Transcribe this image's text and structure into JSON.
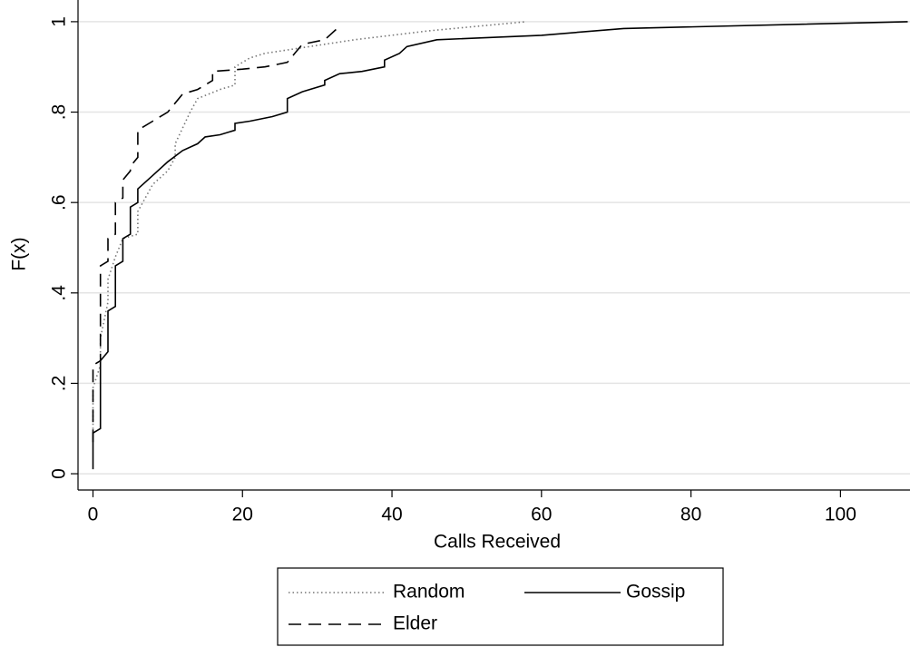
{
  "chart_data": {
    "type": "line",
    "x_label": "Calls Received",
    "y_label": "F(x)",
    "xlim": [
      -2,
      109.3
    ],
    "ylim": [
      -0.036,
      1.048
    ],
    "xticks": [
      0,
      20,
      40,
      60,
      80,
      100
    ],
    "yticks": [
      0,
      {
        "value": 0.2,
        "label": ".2"
      },
      {
        "value": 0.4,
        "label": ".4"
      },
      {
        "value": 0.6,
        "label": ".6"
      },
      {
        "value": 0.8,
        "label": ".8"
      },
      1
    ],
    "grid": true,
    "legend": "bottom",
    "series": [
      {
        "name": "Random",
        "color": "#777777",
        "dash": "dotted",
        "x": [
          0,
          0,
          1,
          1,
          2,
          2,
          3,
          4,
          6,
          6,
          8,
          10,
          11,
          11,
          13,
          14,
          17,
          19,
          19,
          21,
          23,
          27,
          35,
          45,
          58
        ],
        "values": [
          0.09,
          0.19,
          0.24,
          0.3,
          0.38,
          0.43,
          0.48,
          0.52,
          0.53,
          0.58,
          0.64,
          0.67,
          0.7,
          0.73,
          0.8,
          0.83,
          0.85,
          0.86,
          0.9,
          0.92,
          0.93,
          0.94,
          0.96,
          0.98,
          1
        ]
      },
      {
        "name": "Gossip",
        "color": "#000000",
        "dash": "solid",
        "x": [
          0,
          0,
          1,
          1,
          2,
          2,
          3,
          3,
          4,
          4,
          5,
          5,
          6,
          6,
          8,
          10,
          12,
          14,
          15,
          17,
          19,
          19,
          21,
          24,
          26,
          26,
          28,
          31,
          31,
          33,
          36,
          39,
          39,
          41,
          42,
          46,
          60,
          71,
          109
        ],
        "values": [
          0.01,
          0.09,
          0.1,
          0.25,
          0.27,
          0.36,
          0.37,
          0.46,
          0.47,
          0.52,
          0.53,
          0.59,
          0.6,
          0.63,
          0.66,
          0.69,
          0.715,
          0.73,
          0.745,
          0.75,
          0.76,
          0.775,
          0.78,
          0.79,
          0.8,
          0.83,
          0.845,
          0.86,
          0.87,
          0.885,
          0.89,
          0.9,
          0.915,
          0.93,
          0.945,
          0.96,
          0.97,
          0.985,
          1
        ]
      },
      {
        "name": "Elder",
        "color": "#000000",
        "dash": "dashed",
        "x": [
          0,
          0,
          1,
          1,
          2,
          2,
          3,
          3,
          4,
          4,
          5,
          5,
          6,
          6,
          8,
          10,
          12,
          14,
          16,
          16,
          20,
          23,
          26,
          27,
          28,
          31,
          33
        ],
        "values": [
          0.07,
          0.24,
          0.25,
          0.46,
          0.47,
          0.52,
          0.53,
          0.6,
          0.61,
          0.65,
          0.67,
          0.68,
          0.7,
          0.76,
          0.78,
          0.8,
          0.84,
          0.85,
          0.87,
          0.89,
          0.895,
          0.9,
          0.91,
          0.93,
          0.95,
          0.96,
          0.99
        ]
      }
    ]
  }
}
